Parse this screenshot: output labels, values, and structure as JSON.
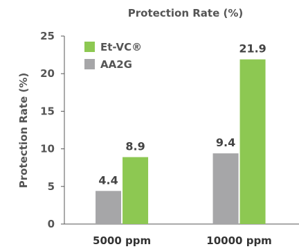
{
  "chart_data": {
    "type": "bar",
    "title": "Protection Rate (%)",
    "xlabel": "",
    "ylabel": "Protection Rate (%)",
    "ylim": [
      0,
      25
    ],
    "yticks": [
      0,
      5,
      10,
      15,
      20,
      25
    ],
    "categories": [
      "5000 ppm",
      "10000 ppm"
    ],
    "series": [
      {
        "name": "AA2G",
        "values": [
          4.4,
          9.4
        ],
        "color": "#a6a6a8"
      },
      {
        "name": "Et-VC®",
        "values": [
          8.9,
          21.9
        ],
        "color": "#8dc852"
      }
    ],
    "data_labels": true,
    "grid": false,
    "legend_position": "top-left",
    "legend_order": [
      "Et-VC®",
      "AA2G"
    ]
  }
}
